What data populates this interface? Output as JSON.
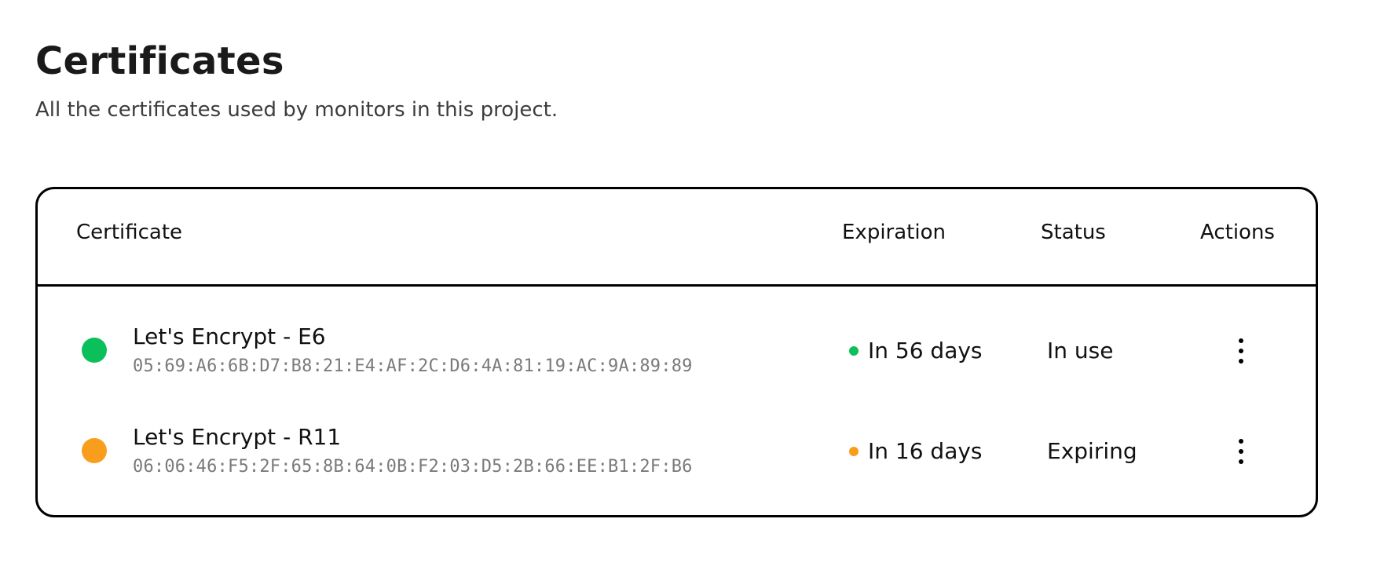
{
  "page": {
    "title": "Certificates",
    "subtitle": "All the certificates used by monitors in this project."
  },
  "table": {
    "columns": {
      "certificate": "Certificate",
      "expiration": "Expiration",
      "status": "Status",
      "actions": "Actions"
    },
    "rows": [
      {
        "name": "Let's Encrypt - E6",
        "fingerprint": "05:69:A6:6B:D7:B8:21:E4:AF:2C:D6:4A:81:19:AC:9A:89:89",
        "expiration": "In 56 days",
        "status": "In use",
        "status_color": "#0bc05a",
        "actions_icon": "more-vertical-icon"
      },
      {
        "name": "Let's Encrypt - R11",
        "fingerprint": "06:06:46:F5:2F:65:8B:64:0B:F2:03:D5:2B:66:EE:B1:2F:B6",
        "expiration": "In 16 days",
        "status": "Expiring",
        "status_color": "#f99d1c",
        "actions_icon": "more-vertical-icon"
      }
    ]
  }
}
